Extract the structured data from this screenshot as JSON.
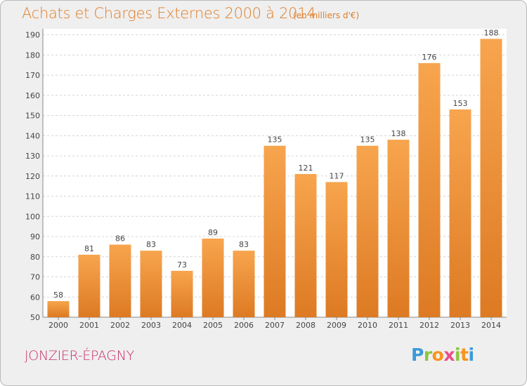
{
  "header": {
    "title": "Achats et Charges Externes 2000 à 2014",
    "subtitle": "(en milliers d'€)"
  },
  "footer": {
    "commune": "JONZIER-ÉPAGNY",
    "logo_text": "Proxiti"
  },
  "colors": {
    "bar_light": "#f7a54e",
    "bar_dark": "#dd7a23",
    "title": "#e07e28",
    "commune": "#c9306b",
    "grid": "#d4d4d4",
    "plot_background": "#ffffff"
  },
  "chart_data": {
    "type": "bar",
    "title": "Achats et Charges Externes 2000 à 2014",
    "subtitle": "(en milliers d'€)",
    "xlabel": "",
    "ylabel": "",
    "ylim": [
      50,
      193
    ],
    "yticks": [
      50,
      60,
      70,
      80,
      90,
      100,
      110,
      120,
      130,
      140,
      150,
      160,
      170,
      180,
      190
    ],
    "grid": true,
    "legend": "none",
    "categories": [
      "2000",
      "2001",
      "2002",
      "2003",
      "2004",
      "2005",
      "2006",
      "2007",
      "2008",
      "2009",
      "2010",
      "2011",
      "2012",
      "2013",
      "2014"
    ],
    "values": [
      58,
      81,
      86,
      83,
      73,
      89,
      83,
      135,
      121,
      117,
      135,
      138,
      176,
      153,
      188
    ]
  }
}
